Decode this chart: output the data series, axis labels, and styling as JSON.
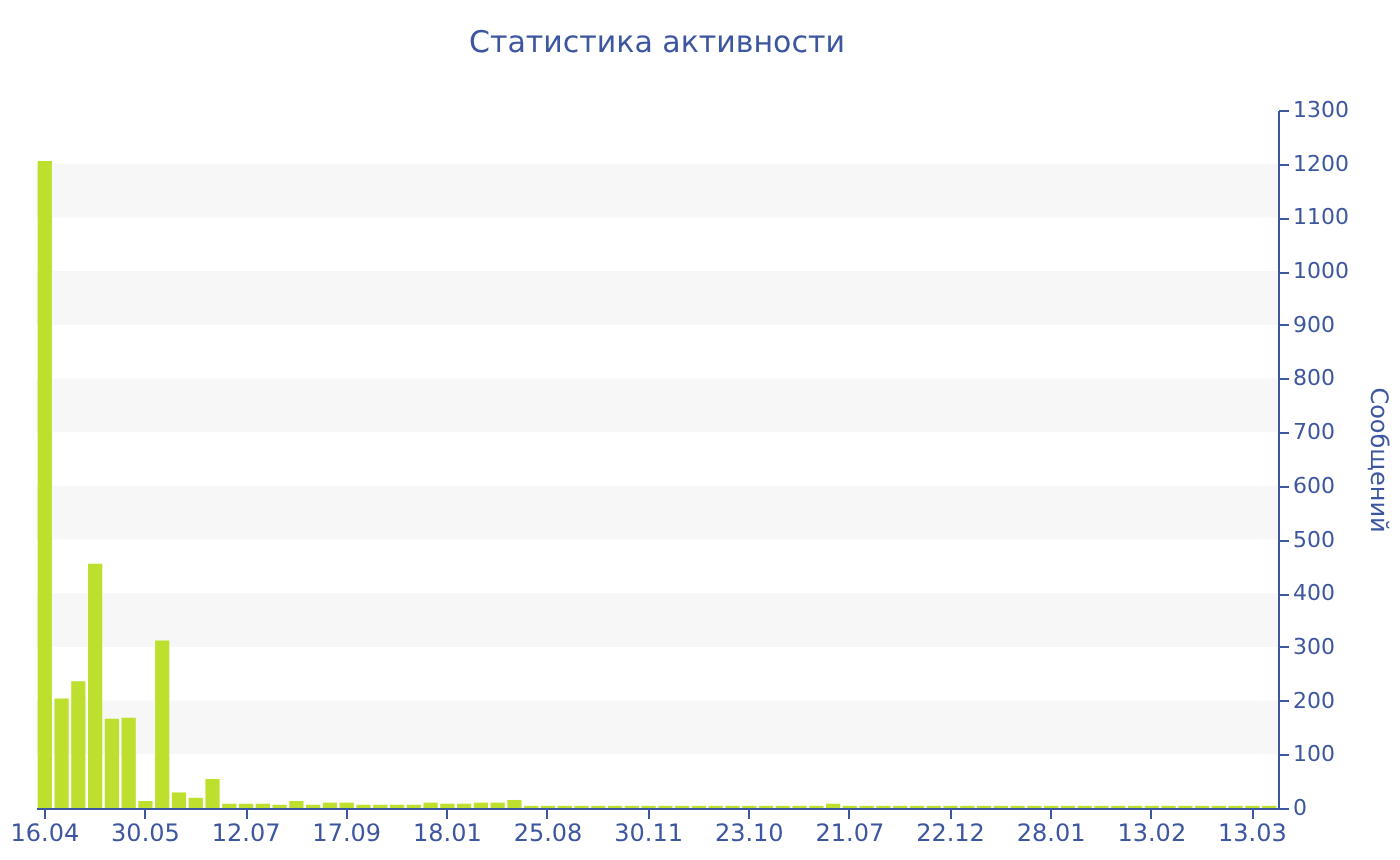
{
  "chart_data": {
    "type": "bar",
    "title": "Статистика активности",
    "ylabel": "Сообщений",
    "categories": [
      "16.04",
      null,
      null,
      null,
      null,
      null,
      "30.05",
      null,
      null,
      null,
      null,
      null,
      "12.07",
      null,
      null,
      null,
      null,
      null,
      "17.09",
      null,
      null,
      null,
      null,
      null,
      "18.01",
      null,
      null,
      null,
      null,
      null,
      "25.08",
      null,
      null,
      null,
      null,
      null,
      "30.11",
      null,
      null,
      null,
      null,
      null,
      "23.10",
      null,
      null,
      null,
      null,
      null,
      "21.07",
      null,
      null,
      null,
      null,
      null,
      "22.12",
      null,
      null,
      null,
      null,
      null,
      "28.01",
      null,
      null,
      null,
      null,
      null,
      "13.02",
      null,
      null,
      null,
      null,
      null,
      "13.03",
      null
    ],
    "values": [
      1205,
      204,
      236,
      455,
      166,
      168,
      13,
      312,
      29,
      19,
      54,
      8,
      8,
      8,
      6,
      13,
      6,
      10,
      10,
      6,
      6,
      6,
      6,
      10,
      8,
      8,
      10,
      10,
      15,
      4,
      4,
      4,
      4,
      4,
      4,
      4,
      4,
      4,
      4,
      4,
      4,
      4,
      4,
      4,
      4,
      4,
      4,
      8,
      4,
      4,
      4,
      4,
      4,
      4,
      4,
      4,
      4,
      4,
      4,
      4,
      4,
      4,
      4,
      4,
      4,
      4,
      4,
      4,
      4,
      4,
      4,
      4,
      4,
      4
    ],
    "color": "#bde02f",
    "ylim": [
      0,
      1300
    ],
    "yticks": [
      0,
      100,
      200,
      300,
      400,
      500,
      600,
      700,
      800,
      900,
      1000,
      1100,
      1200,
      1300
    ]
  }
}
